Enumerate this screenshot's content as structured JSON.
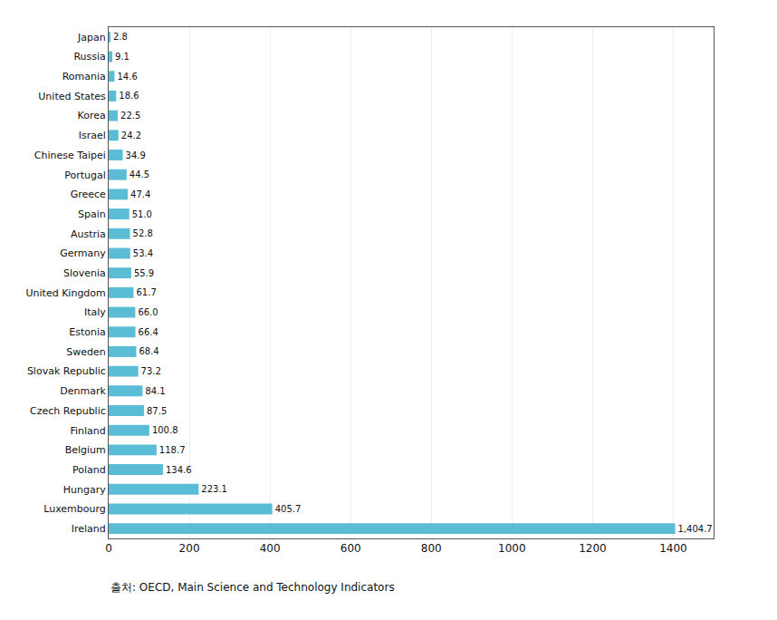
{
  "chart_data": {
    "type": "bar",
    "orientation": "horizontal",
    "categories": [
      "Ireland",
      "Luxembourg",
      "Hungary",
      "Poland",
      "Belgium",
      "Finland",
      "Czech Republic",
      "Denmark",
      "Slovak Republic",
      "Sweden",
      "Estonia",
      "Italy",
      "United Kingdom",
      "Slovenia",
      "Germany",
      "Austria",
      "Spain",
      "Greece",
      "Portugal",
      "Chinese Taipei",
      "Israel",
      "Korea",
      "United States",
      "Romania",
      "Russia",
      "Japan"
    ],
    "values": [
      1404.7,
      405.7,
      223.1,
      134.6,
      118.7,
      100.8,
      87.5,
      84.1,
      73.2,
      68.4,
      66.4,
      66.0,
      61.7,
      55.9,
      53.4,
      52.8,
      51.0,
      47.4,
      44.5,
      34.9,
      24.2,
      22.5,
      18.6,
      14.6,
      9.1,
      2.8
    ],
    "value_labels": [
      "1,404.7",
      "405.7",
      "223.1",
      "134.6",
      "118.7",
      "100.8",
      "87.5",
      "84.1",
      "73.2",
      "68.4",
      "66.4",
      "66.0",
      "61.7",
      "55.9",
      "53.4",
      "52.8",
      "51.0",
      "47.4",
      "44.5",
      "34.9",
      "24.2",
      "22.5",
      "18.6",
      "14.6",
      "9.1",
      "2.8"
    ],
    "color": "#5bbcd6",
    "xlim": [
      0,
      1500
    ],
    "xticks": [
      0,
      200,
      400,
      600,
      800,
      1000,
      1200,
      1400
    ],
    "grid": true,
    "data_labels": true,
    "annotations": [
      "출처: OECD, Main Science and Technology Indicators"
    ]
  }
}
